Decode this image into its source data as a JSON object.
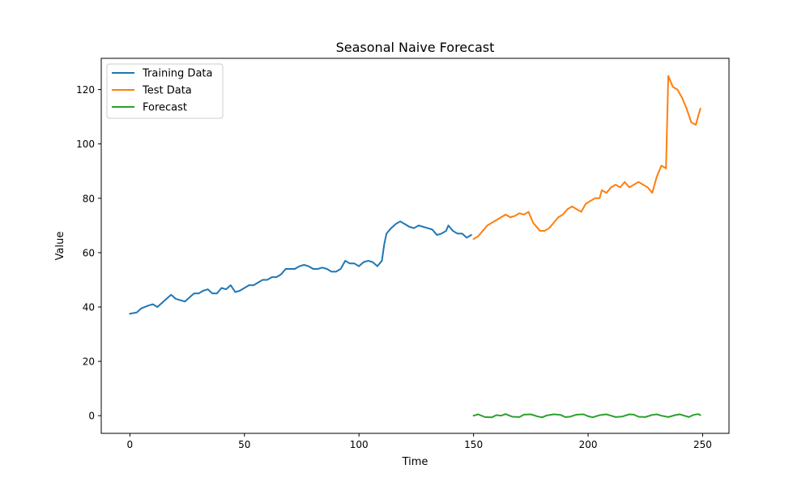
{
  "chart_data": {
    "type": "line",
    "title": "Seasonal Naive Forecast",
    "xlabel": "Time",
    "ylabel": "Value",
    "xlim": [
      -12.5,
      261.5
    ],
    "ylim": [
      -6.5,
      131.5
    ],
    "xticks": [
      0,
      50,
      100,
      150,
      200,
      250
    ],
    "yticks": [
      0,
      20,
      40,
      60,
      80,
      100,
      120
    ],
    "grid": false,
    "legend_position": "top-left",
    "series": [
      {
        "name": "Training Data",
        "color": "#1f77b4",
        "points": [
          [
            0,
            37.5
          ],
          [
            3,
            38
          ],
          [
            5,
            39.5
          ],
          [
            8,
            40.5
          ],
          [
            10,
            41
          ],
          [
            12,
            40
          ],
          [
            14,
            41.5
          ],
          [
            16,
            43
          ],
          [
            18,
            44.5
          ],
          [
            20,
            43
          ],
          [
            22,
            42.5
          ],
          [
            24,
            42
          ],
          [
            26,
            43.5
          ],
          [
            28,
            45
          ],
          [
            30,
            45
          ],
          [
            32,
            46
          ],
          [
            34,
            46.5
          ],
          [
            36,
            45
          ],
          [
            38,
            45
          ],
          [
            40,
            47
          ],
          [
            42,
            46.5
          ],
          [
            44,
            48
          ],
          [
            46,
            45.5
          ],
          [
            48,
            46
          ],
          [
            50,
            47
          ],
          [
            52,
            48
          ],
          [
            54,
            48
          ],
          [
            56,
            49
          ],
          [
            58,
            50
          ],
          [
            60,
            50
          ],
          [
            62,
            51
          ],
          [
            64,
            51
          ],
          [
            66,
            52
          ],
          [
            68,
            54
          ],
          [
            70,
            54
          ],
          [
            72,
            54
          ],
          [
            74,
            55
          ],
          [
            76,
            55.5
          ],
          [
            78,
            55
          ],
          [
            80,
            54
          ],
          [
            82,
            54
          ],
          [
            84,
            54.5
          ],
          [
            86,
            54
          ],
          [
            88,
            53
          ],
          [
            90,
            53
          ],
          [
            92,
            54
          ],
          [
            94,
            57
          ],
          [
            96,
            56
          ],
          [
            98,
            56
          ],
          [
            100,
            55
          ],
          [
            102,
            56.5
          ],
          [
            104,
            57
          ],
          [
            106,
            56.5
          ],
          [
            108,
            55
          ],
          [
            110,
            57
          ],
          [
            111,
            63
          ],
          [
            112,
            67
          ],
          [
            114,
            69
          ],
          [
            116,
            70.5
          ],
          [
            118,
            71.5
          ],
          [
            120,
            70.5
          ],
          [
            122,
            69.5
          ],
          [
            124,
            69
          ],
          [
            126,
            70
          ],
          [
            128,
            69.5
          ],
          [
            130,
            69
          ],
          [
            132,
            68.5
          ],
          [
            134,
            66.5
          ],
          [
            136,
            67
          ],
          [
            138,
            68
          ],
          [
            139,
            70
          ],
          [
            141,
            68
          ],
          [
            143,
            67
          ],
          [
            145,
            67
          ],
          [
            147,
            65.5
          ],
          [
            149,
            66.5
          ]
        ]
      },
      {
        "name": "Test Data",
        "color": "#ff7f0e",
        "points": [
          [
            150,
            65
          ],
          [
            152,
            66
          ],
          [
            154,
            68
          ],
          [
            156,
            70
          ],
          [
            158,
            71
          ],
          [
            160,
            72
          ],
          [
            162,
            73
          ],
          [
            164,
            74
          ],
          [
            166,
            73
          ],
          [
            168,
            73.5
          ],
          [
            170,
            74.5
          ],
          [
            172,
            74
          ],
          [
            174,
            75
          ],
          [
            176,
            71
          ],
          [
            178,
            69
          ],
          [
            179,
            68
          ],
          [
            181,
            68
          ],
          [
            183,
            69
          ],
          [
            185,
            71
          ],
          [
            187,
            73
          ],
          [
            189,
            74
          ],
          [
            191,
            76
          ],
          [
            193,
            77
          ],
          [
            195,
            76
          ],
          [
            197,
            75
          ],
          [
            199,
            78
          ],
          [
            201,
            79
          ],
          [
            203,
            80
          ],
          [
            205,
            80
          ],
          [
            206,
            83
          ],
          [
            208,
            82
          ],
          [
            210,
            84
          ],
          [
            212,
            85
          ],
          [
            214,
            84
          ],
          [
            216,
            86
          ],
          [
            218,
            84
          ],
          [
            220,
            85
          ],
          [
            222,
            86
          ],
          [
            224,
            85
          ],
          [
            226,
            84
          ],
          [
            228,
            82
          ],
          [
            230,
            88
          ],
          [
            232,
            92
          ],
          [
            234,
            91
          ],
          [
            235,
            125
          ],
          [
            237,
            121
          ],
          [
            239,
            120
          ],
          [
            241,
            117
          ],
          [
            243,
            113
          ],
          [
            245,
            108
          ],
          [
            247,
            107
          ],
          [
            249,
            113
          ]
        ]
      },
      {
        "name": "Forecast",
        "color": "#2ca02c",
        "points": [
          [
            150,
            0
          ],
          [
            152,
            0.5
          ],
          [
            155,
            -0.5
          ],
          [
            158,
            -0.6
          ],
          [
            160,
            0.2
          ],
          [
            162,
            0
          ],
          [
            164,
            0.6
          ],
          [
            167,
            -0.4
          ],
          [
            170,
            -0.5
          ],
          [
            172,
            0.4
          ],
          [
            175,
            0.5
          ],
          [
            178,
            -0.3
          ],
          [
            180,
            -0.6
          ],
          [
            182,
            0.1
          ],
          [
            185,
            0.5
          ],
          [
            188,
            0.3
          ],
          [
            190,
            -0.5
          ],
          [
            192,
            -0.4
          ],
          [
            195,
            0.4
          ],
          [
            198,
            0.5
          ],
          [
            200,
            -0.2
          ],
          [
            202,
            -0.6
          ],
          [
            205,
            0.2
          ],
          [
            208,
            0.5
          ],
          [
            210,
            0
          ],
          [
            212,
            -0.5
          ],
          [
            215,
            -0.3
          ],
          [
            218,
            0.5
          ],
          [
            220,
            0.4
          ],
          [
            222,
            -0.4
          ],
          [
            225,
            -0.5
          ],
          [
            228,
            0.3
          ],
          [
            230,
            0.5
          ],
          [
            232,
            0
          ],
          [
            235,
            -0.5
          ],
          [
            238,
            0.2
          ],
          [
            240,
            0.5
          ],
          [
            242,
            0
          ],
          [
            244,
            -0.5
          ],
          [
            246,
            0.3
          ],
          [
            248,
            0.6
          ],
          [
            249,
            0.2
          ]
        ]
      }
    ]
  }
}
